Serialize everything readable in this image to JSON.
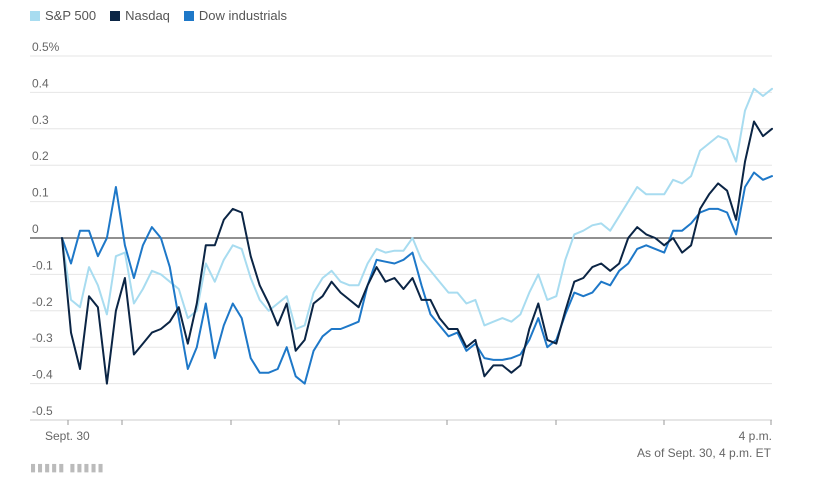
{
  "chart_data": {
    "type": "line",
    "title": "",
    "xlabel": "",
    "ylabel": "",
    "ylim": [
      -0.5,
      0.5
    ],
    "y_ticks": [
      0.5,
      0.4,
      0.3,
      0.2,
      0.1,
      0,
      -0.1,
      -0.2,
      -0.3,
      -0.4,
      -0.5
    ],
    "y_tick_labels": [
      "0.5%",
      "0.4",
      "0.3",
      "0.2",
      "0.1",
      "0",
      "-0.1",
      "-0.2",
      "-0.3",
      "-0.4",
      "-0.5"
    ],
    "x_tick_labels": {
      "start": "Sept. 30",
      "end": "4 p.m."
    },
    "legend_placement": "top-left",
    "grid": true,
    "series": [
      {
        "name": "S&P 500",
        "color": "#a8dcf0",
        "values": [
          0,
          -0.17,
          -0.19,
          -0.08,
          -0.13,
          -0.21,
          -0.05,
          -0.04,
          -0.18,
          -0.14,
          -0.09,
          -0.1,
          -0.12,
          -0.14,
          -0.22,
          -0.2,
          -0.07,
          -0.12,
          -0.06,
          -0.02,
          -0.03,
          -0.11,
          -0.17,
          -0.2,
          -0.18,
          -0.16,
          -0.25,
          -0.24,
          -0.15,
          -0.11,
          -0.09,
          -0.12,
          -0.13,
          -0.13,
          -0.07,
          -0.03,
          -0.04,
          -0.035,
          -0.035,
          0.0,
          -0.06,
          -0.09,
          -0.12,
          -0.15,
          -0.15,
          -0.18,
          -0.17,
          -0.24,
          -0.23,
          -0.22,
          -0.23,
          -0.21,
          -0.15,
          -0.1,
          -0.17,
          -0.16,
          -0.06,
          0.01,
          0.02,
          0.035,
          0.04,
          0.02,
          0.06,
          0.1,
          0.14,
          0.12,
          0.12,
          0.12,
          0.16,
          0.15,
          0.17,
          0.24,
          0.26,
          0.28,
          0.27,
          0.21,
          0.35,
          0.41,
          0.39,
          0.41
        ]
      },
      {
        "name": "Nasdaq",
        "color": "#0b2545",
        "values": [
          0,
          -0.26,
          -0.36,
          -0.16,
          -0.19,
          -0.4,
          -0.2,
          -0.11,
          -0.32,
          -0.29,
          -0.26,
          -0.25,
          -0.23,
          -0.19,
          -0.29,
          -0.18,
          -0.02,
          -0.02,
          0.05,
          0.08,
          0.07,
          -0.05,
          -0.13,
          -0.18,
          -0.24,
          -0.18,
          -0.31,
          -0.28,
          -0.18,
          -0.16,
          -0.12,
          -0.15,
          -0.17,
          -0.19,
          -0.13,
          -0.08,
          -0.12,
          -0.11,
          -0.14,
          -0.11,
          -0.17,
          -0.17,
          -0.22,
          -0.25,
          -0.25,
          -0.3,
          -0.28,
          -0.38,
          -0.35,
          -0.35,
          -0.37,
          -0.35,
          -0.25,
          -0.18,
          -0.28,
          -0.29,
          -0.2,
          -0.12,
          -0.11,
          -0.08,
          -0.07,
          -0.09,
          -0.07,
          0.0,
          0.03,
          0.01,
          0.0,
          -0.02,
          0.0,
          -0.04,
          -0.02,
          0.08,
          0.12,
          0.15,
          0.13,
          0.05,
          0.21,
          0.32,
          0.28,
          0.3
        ]
      },
      {
        "name": "Dow industrials",
        "color": "#1e78c8",
        "values": [
          0,
          -0.07,
          0.02,
          0.02,
          -0.05,
          0.0,
          0.14,
          -0.02,
          -0.11,
          -0.02,
          0.03,
          0.0,
          -0.08,
          -0.22,
          -0.36,
          -0.3,
          -0.18,
          -0.33,
          -0.24,
          -0.18,
          -0.22,
          -0.33,
          -0.37,
          -0.37,
          -0.36,
          -0.3,
          -0.38,
          -0.4,
          -0.31,
          -0.27,
          -0.25,
          -0.25,
          -0.24,
          -0.23,
          -0.13,
          -0.06,
          -0.065,
          -0.07,
          -0.06,
          -0.04,
          -0.13,
          -0.21,
          -0.24,
          -0.27,
          -0.26,
          -0.31,
          -0.29,
          -0.33,
          -0.335,
          -0.335,
          -0.33,
          -0.32,
          -0.28,
          -0.22,
          -0.3,
          -0.28,
          -0.21,
          -0.15,
          -0.16,
          -0.15,
          -0.12,
          -0.13,
          -0.09,
          -0.07,
          -0.03,
          -0.02,
          -0.03,
          -0.04,
          0.02,
          0.02,
          0.04,
          0.07,
          0.08,
          0.08,
          0.07,
          0.01,
          0.14,
          0.18,
          0.16,
          0.17
        ]
      }
    ]
  },
  "note": "As of Sept. 30, 4 p.m. ET"
}
